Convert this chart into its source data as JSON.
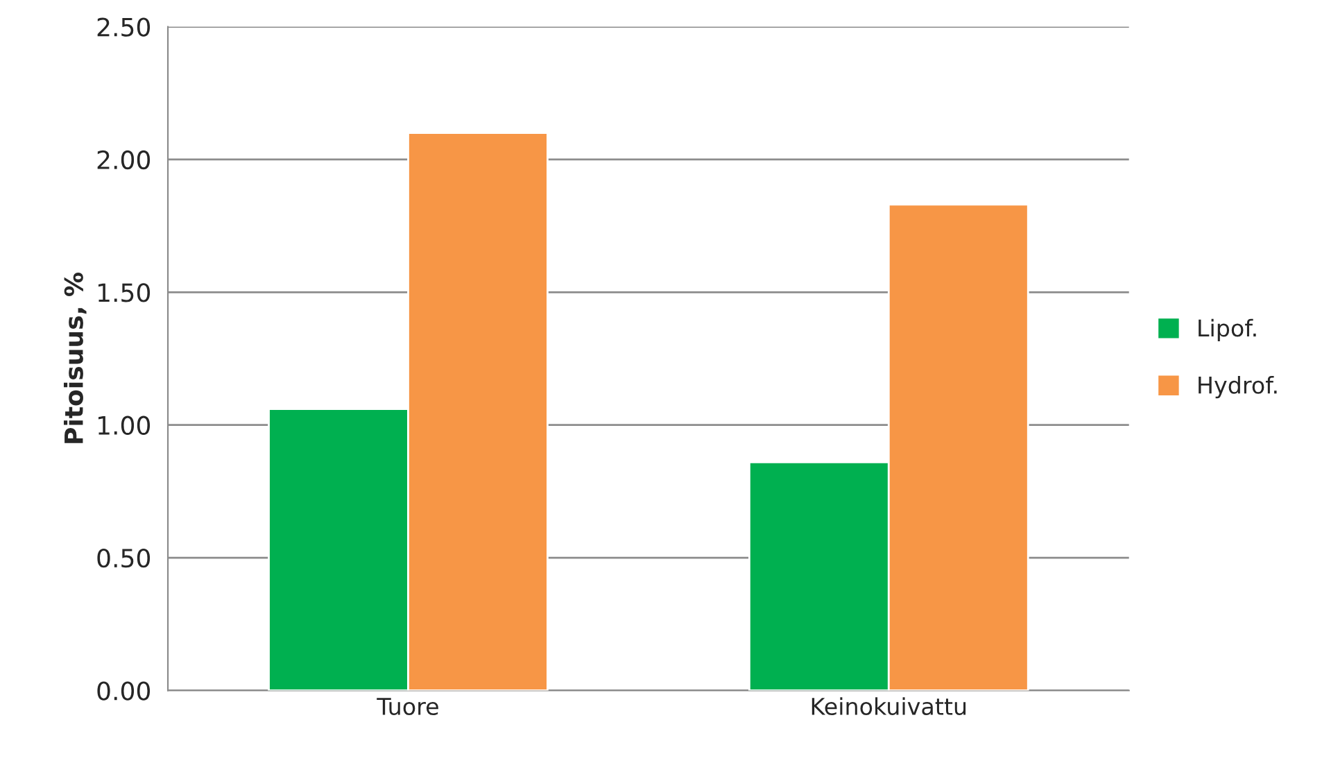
{
  "chart_data": {
    "type": "bar",
    "ylabel": "Pitoisuus, %",
    "categories": [
      "Tuore",
      "Keinokuivattu"
    ],
    "series": [
      {
        "name": "Lipof.",
        "color": "#00b050",
        "values": [
          1.06,
          0.86
        ]
      },
      {
        "name": "Hydrof.",
        "color": "#f79646",
        "values": [
          2.1,
          1.83
        ]
      }
    ],
    "ylim": [
      0,
      2.5
    ],
    "yticks": [
      {
        "value": 0,
        "label": "0.00"
      },
      {
        "value": 0.5,
        "label": "0.50"
      },
      {
        "value": 1,
        "label": "1.00"
      },
      {
        "value": 1.5,
        "label": "1.50"
      },
      {
        "value": 2,
        "label": "2.00"
      },
      {
        "value": 2.5,
        "label": "2.50"
      }
    ],
    "grid": "y",
    "legend": "right"
  }
}
